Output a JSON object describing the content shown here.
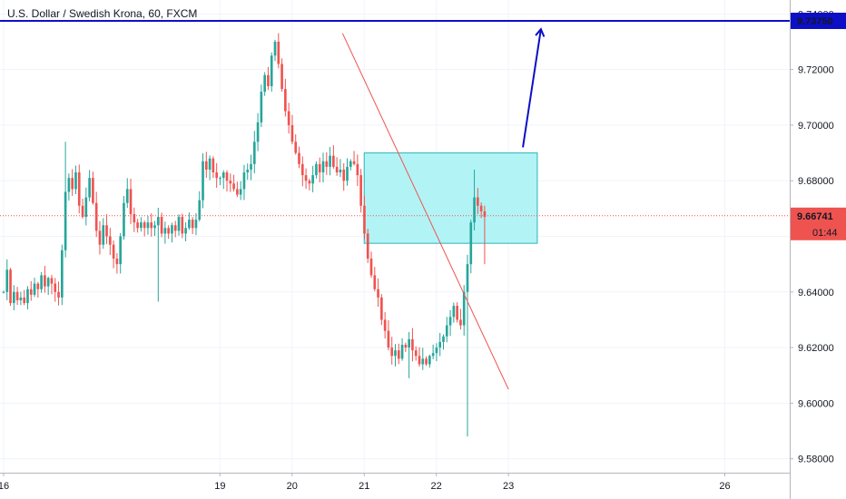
{
  "chart_data": {
    "type": "candlestick",
    "title": "U.S. Dollar / Swedish Krona, 60, FXCM",
    "timeframe_minutes": 60,
    "y_range": [
      9.575,
      9.745
    ],
    "x_range": [
      15.95,
      26.9
    ],
    "y_ticks": [
      {
        "value": 9.74,
        "label": "9.74000"
      },
      {
        "value": 9.72,
        "label": "9.72000"
      },
      {
        "value": 9.7,
        "label": "9.70000"
      },
      {
        "value": 9.68,
        "label": "9.68000"
      },
      {
        "value": 9.66,
        "label": "9.66000"
      },
      {
        "value": 9.64,
        "label": "9.64000"
      },
      {
        "value": 9.62,
        "label": "9.62000"
      },
      {
        "value": 9.6,
        "label": "9.60000"
      },
      {
        "value": 9.58,
        "label": "9.58000"
      }
    ],
    "x_ticks": [
      {
        "value": 16,
        "label": "16"
      },
      {
        "value": 19,
        "label": "19"
      },
      {
        "value": 20,
        "label": "20"
      },
      {
        "value": 21,
        "label": "21"
      },
      {
        "value": 22,
        "label": "22"
      },
      {
        "value": 23,
        "label": "23"
      },
      {
        "value": 26,
        "label": "26"
      }
    ],
    "current_price": {
      "value": 9.66741,
      "label": "9.66741",
      "countdown": "01:44",
      "color": "#ef5350"
    },
    "target_level": {
      "value": 9.7375,
      "label": "9.73750",
      "color": "#0d0fc7"
    },
    "trendline": {
      "from": [
        20.7,
        9.733
      ],
      "to": [
        23.0,
        9.605
      ],
      "color": "#ef5350"
    },
    "zone": {
      "x": [
        21.0,
        23.4
      ],
      "y": [
        9.6575,
        9.69
      ],
      "fill": "#b2f4f6",
      "stroke": "#2bb5b8"
    },
    "arrow": {
      "from": [
        23.2,
        9.692
      ],
      "to": [
        23.45,
        9.7345
      ],
      "color": "#0d0fc7"
    },
    "colors": {
      "up": "#26a69a",
      "down": "#ef5350",
      "grid": "#f0f3fa",
      "axis": "#b2b5be"
    },
    "candles": {
      "start_open": 9.64,
      "closes": [
        9.64,
        9.648,
        9.636,
        9.64,
        9.637,
        9.638,
        9.636,
        9.641,
        9.639,
        9.643,
        9.641,
        9.646,
        9.642,
        9.645,
        9.643,
        9.64,
        9.638,
        9.655,
        9.676,
        9.681,
        9.677,
        9.683,
        9.671,
        9.667,
        9.674,
        9.681,
        9.672,
        9.662,
        9.657,
        9.664,
        9.66,
        9.657,
        9.652,
        9.65,
        9.66,
        9.672,
        9.677,
        9.668,
        9.665,
        9.663,
        9.665,
        9.663,
        9.665,
        9.663,
        9.664,
        9.667,
        9.661,
        9.663,
        9.661,
        9.664,
        9.662,
        9.667,
        9.661,
        9.663,
        9.666,
        9.663,
        9.666,
        9.673,
        9.687,
        9.684,
        9.688,
        9.683,
        9.681,
        9.681,
        9.683,
        9.68,
        9.679,
        9.677,
        9.675,
        9.677,
        9.683,
        9.684,
        9.686,
        9.694,
        9.701,
        9.712,
        9.718,
        9.714,
        9.725,
        9.73,
        9.722,
        9.713,
        9.705,
        9.7,
        9.694,
        9.69,
        9.686,
        9.682,
        9.68,
        9.679,
        9.682,
        9.686,
        9.683,
        9.687,
        9.685,
        9.689,
        9.685,
        9.683,
        9.684,
        9.68,
        9.685,
        9.687,
        9.686,
        9.682,
        9.671,
        9.661,
        9.652,
        9.646,
        9.641,
        9.638,
        9.63,
        9.626,
        9.62,
        9.617,
        9.619,
        9.616,
        9.621,
        9.62,
        9.623,
        9.619,
        9.617,
        9.614,
        9.616,
        9.614,
        9.617,
        9.618,
        9.62,
        9.622,
        9.624,
        9.628,
        9.631,
        9.635,
        9.63,
        9.628,
        9.64,
        9.65,
        9.665,
        9.674,
        9.671,
        9.669,
        9.667
      ]
    }
  }
}
